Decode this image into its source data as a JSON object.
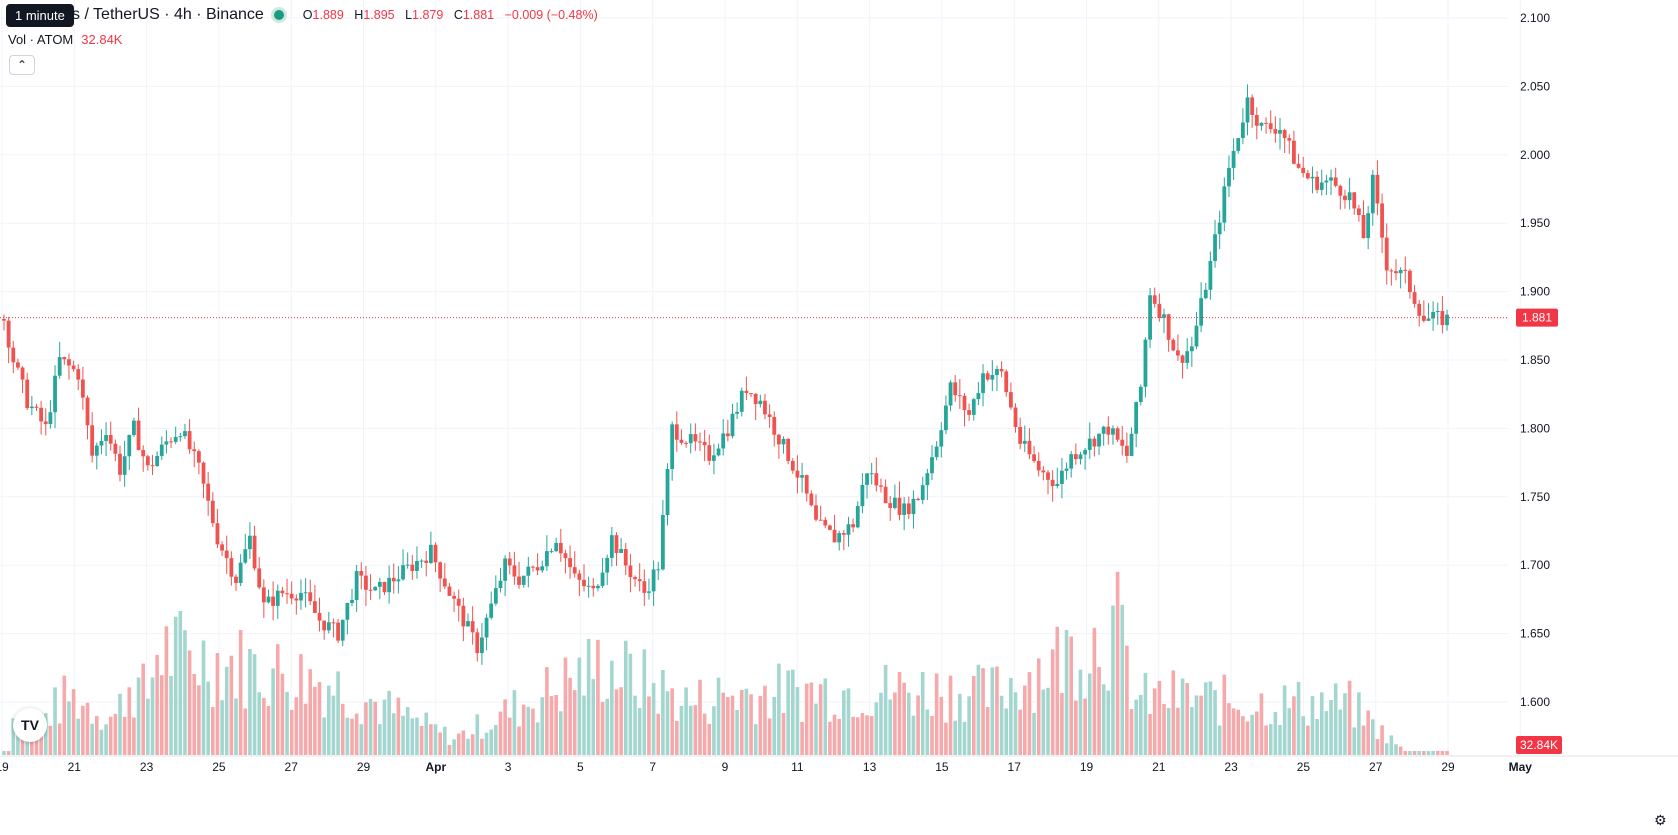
{
  "header": {
    "interval_tooltip": "1 minute",
    "title": "s / TetherUS · 4h · Binance",
    "ohlc": {
      "o_label": "O",
      "o": "1.889",
      "h_label": "H",
      "h": "1.895",
      "l_label": "L",
      "l": "1.879",
      "c_label": "C",
      "c": "1.881",
      "change": "−0.009 (−0.48%)"
    }
  },
  "volume_legend": {
    "label": "Vol · ATOM",
    "value": "32.84K"
  },
  "collapse_icon": "chevron-up-icon",
  "logo_text": "TV",
  "colors": {
    "up": "#26a69a",
    "down": "#ef5350",
    "vol_up": "#a3d6cf",
    "vol_down": "#f5a9aa",
    "price_label": "#f23645",
    "grid": "#f0f3fa"
  },
  "chart_data": {
    "type": "candlestick",
    "interval": "4h",
    "price_axis": {
      "ticks": [
        "2.100",
        "2.050",
        "2.000",
        "1.950",
        "1.900",
        "1.850",
        "1.800",
        "1.750",
        "1.700",
        "1.650",
        "1.600"
      ],
      "range": [
        1.565,
        2.103
      ]
    },
    "x_axis_ticks": [
      "19",
      "21",
      "23",
      "25",
      "27",
      "29",
      "Apr",
      "3",
      "5",
      "7",
      "9",
      "11",
      "13",
      "15",
      "17",
      "19",
      "21",
      "23",
      "25",
      "27",
      "29",
      "May"
    ],
    "last_price_label": "1.881",
    "volume_label": "32.84K",
    "anchors": [
      [
        0,
        1.88
      ],
      [
        2,
        1.85
      ],
      [
        5,
        1.82
      ],
      [
        9,
        1.8
      ],
      [
        12,
        1.85
      ],
      [
        16,
        1.84
      ],
      [
        19,
        1.78
      ],
      [
        22,
        1.8
      ],
      [
        25,
        1.77
      ],
      [
        28,
        1.8
      ],
      [
        31,
        1.77
      ],
      [
        35,
        1.79
      ],
      [
        38,
        1.8
      ],
      [
        42,
        1.77
      ],
      [
        46,
        1.72
      ],
      [
        50,
        1.69
      ],
      [
        53,
        1.72
      ],
      [
        56,
        1.67
      ],
      [
        60,
        1.68
      ],
      [
        64,
        1.68
      ],
      [
        68,
        1.66
      ],
      [
        72,
        1.65
      ],
      [
        76,
        1.69
      ],
      [
        80,
        1.68
      ],
      [
        84,
        1.69
      ],
      [
        88,
        1.7
      ],
      [
        92,
        1.71
      ],
      [
        96,
        1.68
      ],
      [
        99,
        1.66
      ],
      [
        102,
        1.64
      ],
      [
        105,
        1.67
      ],
      [
        108,
        1.7
      ],
      [
        111,
        1.69
      ],
      [
        115,
        1.7
      ],
      [
        119,
        1.72
      ],
      [
        123,
        1.69
      ],
      [
        127,
        1.68
      ],
      [
        131,
        1.72
      ],
      [
        134,
        1.7
      ],
      [
        138,
        1.68
      ],
      [
        141,
        1.7
      ],
      [
        144,
        1.8
      ],
      [
        148,
        1.79
      ],
      [
        152,
        1.78
      ],
      [
        156,
        1.8
      ],
      [
        160,
        1.83
      ],
      [
        163,
        1.82
      ],
      [
        166,
        1.8
      ],
      [
        169,
        1.78
      ],
      [
        172,
        1.76
      ],
      [
        175,
        1.73
      ],
      [
        179,
        1.72
      ],
      [
        183,
        1.73
      ],
      [
        186,
        1.77
      ],
      [
        190,
        1.75
      ],
      [
        194,
        1.74
      ],
      [
        197,
        1.75
      ],
      [
        201,
        1.79
      ],
      [
        204,
        1.83
      ],
      [
        208,
        1.81
      ],
      [
        211,
        1.84
      ],
      [
        215,
        1.84
      ],
      [
        219,
        1.79
      ],
      [
        223,
        1.77
      ],
      [
        227,
        1.76
      ],
      [
        230,
        1.78
      ],
      [
        234,
        1.79
      ],
      [
        238,
        1.8
      ],
      [
        242,
        1.78
      ],
      [
        245,
        1.83
      ],
      [
        247,
        1.9
      ],
      [
        250,
        1.88
      ],
      [
        253,
        1.85
      ],
      [
        256,
        1.86
      ],
      [
        260,
        1.92
      ],
      [
        264,
        1.99
      ],
      [
        268,
        2.04
      ],
      [
        271,
        2.02
      ],
      [
        275,
        2.02
      ],
      [
        279,
        1.99
      ],
      [
        282,
        1.98
      ],
      [
        286,
        1.98
      ],
      [
        290,
        1.97
      ],
      [
        293,
        1.94
      ],
      [
        295,
        1.98
      ],
      [
        298,
        1.92
      ],
      [
        302,
        1.91
      ],
      [
        306,
        1.88
      ]
    ],
    "volume_anchors": [
      [
        2,
        0.24
      ],
      [
        5,
        0.15
      ],
      [
        14,
        0.36
      ],
      [
        24,
        0.23
      ],
      [
        27,
        0.44
      ],
      [
        31,
        0.37
      ],
      [
        33,
        0.65
      ],
      [
        70,
        0.45
      ],
      [
        97,
        0.1
      ],
      [
        129,
        0.56
      ],
      [
        148,
        0.32
      ],
      [
        155,
        0.37
      ],
      [
        177,
        0.4
      ],
      [
        206,
        0.4
      ],
      [
        212,
        0.37
      ],
      [
        240,
        0.78
      ],
      [
        244,
        0.34
      ],
      [
        252,
        0.36
      ],
      [
        268,
        0.32
      ],
      [
        283,
        0.32
      ],
      [
        290,
        0.31
      ],
      [
        302,
        0.02
      ]
    ]
  }
}
